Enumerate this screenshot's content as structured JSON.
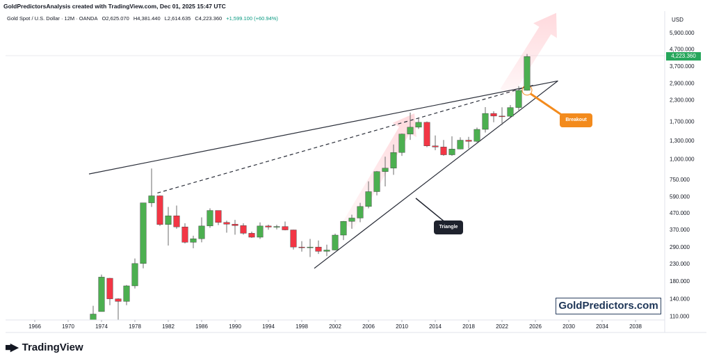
{
  "header": {
    "title": "GoldPredictorsAnalysis created with TradingView.com, Dec 01, 2025 15:47 UTC"
  },
  "symbol_info": {
    "name": "Gold Spot / U.S. Dollar · 12M · OANDA",
    "open": "O2,625.070",
    "high": "H4,381.440",
    "low": "L2,614.635",
    "close": "C4,223.360",
    "change": "+1,599.100 (+60.94%)"
  },
  "currency": "USD",
  "last_price_tag": "4,223.360",
  "watermark": "GoldPredictors.com",
  "logo": {
    "text": "TradingView"
  },
  "annotations": {
    "breakout": "Breakout",
    "triangle": "Triangle"
  },
  "colors": {
    "up": "#4caf50",
    "down": "#f23645",
    "price_tag": "#26a65b",
    "breakout": "#f38b1d",
    "triangle_label": "#1e222d"
  },
  "chart_data": {
    "type": "candlestick",
    "title": "Gold Spot / U.S. Dollar · 12M · OANDA",
    "x_ticks": [
      "1966",
      "1970",
      "1974",
      "1978",
      "1982",
      "1986",
      "1990",
      "1994",
      "1998",
      "2002",
      "2006",
      "2010",
      "2014",
      "2018",
      "2022",
      "2026",
      "2030",
      "2034",
      "2038"
    ],
    "y_ticks": [
      110,
      140,
      180,
      230,
      290,
      370,
      470,
      590,
      750,
      1000,
      1300,
      1700,
      2300,
      2900,
      3700,
      4700,
      5900
    ],
    "y_tick_labels": [
      "110.000",
      "140.000",
      "180.000",
      "230.000",
      "290.000",
      "370.000",
      "470.000",
      "590.000",
      "750.000",
      "1,000.000",
      "1,300.000",
      "1,700.000",
      "2,300.000",
      "2,900.000",
      "3,700.000",
      "4,700.000",
      "5,900.000"
    ],
    "y_scale": "log",
    "ylim": [
      104,
      8000
    ],
    "xlim": [
      1962.5,
      2041.5
    ],
    "candles": [
      {
        "year": 1973,
        "o": 104,
        "h": 127,
        "l": 104,
        "c": 113
      },
      {
        "year": 1974,
        "o": 117,
        "h": 197,
        "l": 117,
        "c": 190
      },
      {
        "year": 1975,
        "o": 187,
        "h": 188,
        "l": 128,
        "c": 140
      },
      {
        "year": 1976,
        "o": 140,
        "h": 141,
        "l": 102,
        "c": 135
      },
      {
        "year": 1977,
        "o": 135,
        "h": 170,
        "l": 128,
        "c": 168
      },
      {
        "year": 1978,
        "o": 168,
        "h": 247,
        "l": 162,
        "c": 230
      },
      {
        "year": 1979,
        "o": 230,
        "h": 525,
        "l": 215,
        "c": 540
      },
      {
        "year": 1980,
        "o": 540,
        "h": 875,
        "l": 510,
        "c": 596
      },
      {
        "year": 1981,
        "o": 596,
        "h": 600,
        "l": 390,
        "c": 398
      },
      {
        "year": 1982,
        "o": 398,
        "h": 510,
        "l": 296,
        "c": 450
      },
      {
        "year": 1983,
        "o": 450,
        "h": 520,
        "l": 375,
        "c": 385
      },
      {
        "year": 1984,
        "o": 385,
        "h": 405,
        "l": 305,
        "c": 310
      },
      {
        "year": 1985,
        "o": 310,
        "h": 340,
        "l": 285,
        "c": 326
      },
      {
        "year": 1986,
        "o": 326,
        "h": 440,
        "l": 310,
        "c": 390
      },
      {
        "year": 1987,
        "o": 390,
        "h": 500,
        "l": 380,
        "c": 485
      },
      {
        "year": 1988,
        "o": 485,
        "h": 485,
        "l": 395,
        "c": 410
      },
      {
        "year": 1989,
        "o": 410,
        "h": 420,
        "l": 355,
        "c": 400
      },
      {
        "year": 1990,
        "o": 400,
        "h": 425,
        "l": 345,
        "c": 392
      },
      {
        "year": 1991,
        "o": 392,
        "h": 405,
        "l": 345,
        "c": 352
      },
      {
        "year": 1992,
        "o": 352,
        "h": 360,
        "l": 330,
        "c": 333
      },
      {
        "year": 1993,
        "o": 333,
        "h": 410,
        "l": 325,
        "c": 390
      },
      {
        "year": 1994,
        "o": 390,
        "h": 397,
        "l": 370,
        "c": 384
      },
      {
        "year": 1995,
        "o": 384,
        "h": 396,
        "l": 372,
        "c": 387
      },
      {
        "year": 1996,
        "o": 387,
        "h": 415,
        "l": 367,
        "c": 369
      },
      {
        "year": 1997,
        "o": 369,
        "h": 370,
        "l": 280,
        "c": 290
      },
      {
        "year": 1998,
        "o": 290,
        "h": 315,
        "l": 272,
        "c": 288
      },
      {
        "year": 1999,
        "o": 288,
        "h": 325,
        "l": 252,
        "c": 290
      },
      {
        "year": 2000,
        "o": 290,
        "h": 318,
        "l": 263,
        "c": 273
      },
      {
        "year": 2001,
        "o": 273,
        "h": 300,
        "l": 255,
        "c": 278
      },
      {
        "year": 2002,
        "o": 278,
        "h": 350,
        "l": 277,
        "c": 343
      },
      {
        "year": 2003,
        "o": 343,
        "h": 418,
        "l": 320,
        "c": 416
      },
      {
        "year": 2004,
        "o": 416,
        "h": 457,
        "l": 375,
        "c": 436
      },
      {
        "year": 2005,
        "o": 436,
        "h": 540,
        "l": 411,
        "c": 513
      },
      {
        "year": 2006,
        "o": 513,
        "h": 730,
        "l": 500,
        "c": 632
      },
      {
        "year": 2007,
        "o": 632,
        "h": 845,
        "l": 600,
        "c": 838
      },
      {
        "year": 2008,
        "o": 838,
        "h": 1033,
        "l": 680,
        "c": 880
      },
      {
        "year": 2009,
        "o": 880,
        "h": 1226,
        "l": 800,
        "c": 1096
      },
      {
        "year": 2010,
        "o": 1096,
        "h": 1431,
        "l": 1045,
        "c": 1421
      },
      {
        "year": 2011,
        "o": 1421,
        "h": 1920,
        "l": 1308,
        "c": 1564
      },
      {
        "year": 2012,
        "o": 1564,
        "h": 1796,
        "l": 1527,
        "c": 1675
      },
      {
        "year": 2013,
        "o": 1675,
        "h": 1696,
        "l": 1180,
        "c": 1202
      },
      {
        "year": 2014,
        "o": 1202,
        "h": 1392,
        "l": 1132,
        "c": 1184
      },
      {
        "year": 2015,
        "o": 1184,
        "h": 1307,
        "l": 1046,
        "c": 1061
      },
      {
        "year": 2016,
        "o": 1061,
        "h": 1375,
        "l": 1046,
        "c": 1151
      },
      {
        "year": 2017,
        "o": 1151,
        "h": 1357,
        "l": 1147,
        "c": 1303
      },
      {
        "year": 2018,
        "o": 1303,
        "h": 1366,
        "l": 1160,
        "c": 1282
      },
      {
        "year": 2019,
        "o": 1282,
        "h": 1557,
        "l": 1266,
        "c": 1517
      },
      {
        "year": 2020,
        "o": 1517,
        "h": 2075,
        "l": 1451,
        "c": 1898
      },
      {
        "year": 2021,
        "o": 1898,
        "h": 1959,
        "l": 1677,
        "c": 1829
      },
      {
        "year": 2022,
        "o": 1829,
        "h": 2070,
        "l": 1614,
        "c": 1824
      },
      {
        "year": 2023,
        "o": 1824,
        "h": 2135,
        "l": 1804,
        "c": 2062
      },
      {
        "year": 2024,
        "o": 2062,
        "h": 2790,
        "l": 1984,
        "c": 2625
      },
      {
        "year": 2025,
        "o": 2625,
        "h": 4381,
        "l": 2615,
        "c": 4223
      }
    ],
    "trendlines": [
      {
        "name": "upper",
        "from": {
          "x": 1972.5,
          "y": 810
        },
        "to": {
          "x": 2028.7,
          "y": 3000
        }
      },
      {
        "name": "lower",
        "from": {
          "x": 1999.5,
          "y": 215
        },
        "to": {
          "x": 2028.7,
          "y": 3000
        }
      },
      {
        "name": "dashed",
        "from": {
          "x": 1980.7,
          "y": 620
        },
        "to": {
          "x": 2025.7,
          "y": 2820
        }
      }
    ]
  }
}
